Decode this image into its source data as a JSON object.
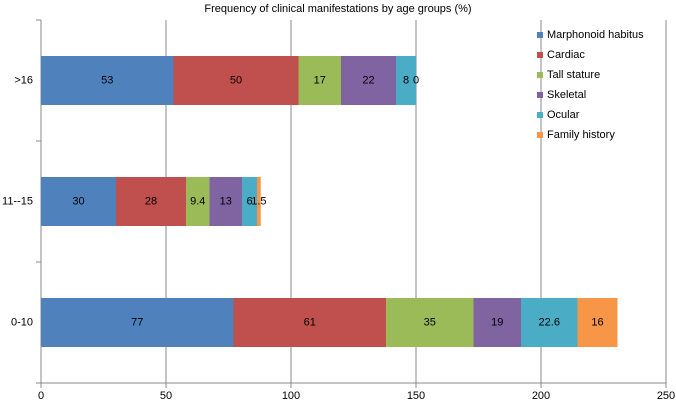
{
  "chart_data": {
    "type": "stacked-barh",
    "title": "Frequency of clinical manifestations by age groups (%)",
    "categories": [
      "0-10",
      "11--15",
      ">16"
    ],
    "series": [
      {
        "name": "Marphonoid habitus",
        "color": "#4f81bd",
        "values": [
          77,
          30,
          53
        ]
      },
      {
        "name": "Cardiac",
        "color": "#c0504d",
        "values": [
          61,
          28,
          50
        ]
      },
      {
        "name": "Tall stature",
        "color": "#9bbb59",
        "values": [
          35,
          9.4,
          17
        ]
      },
      {
        "name": "Skeletal",
        "color": "#8064a2",
        "values": [
          19,
          13,
          22
        ]
      },
      {
        "name": "Ocular",
        "color": "#4bacc6",
        "values": [
          22.6,
          6,
          8
        ]
      },
      {
        "name": "Family history",
        "color": "#f79646",
        "values": [
          16,
          1.5,
          0
        ]
      }
    ],
    "xlim": [
      0,
      250
    ],
    "xticks": [
      0,
      50,
      100,
      150,
      200,
      250
    ],
    "grid": true,
    "legend": "top-right"
  }
}
